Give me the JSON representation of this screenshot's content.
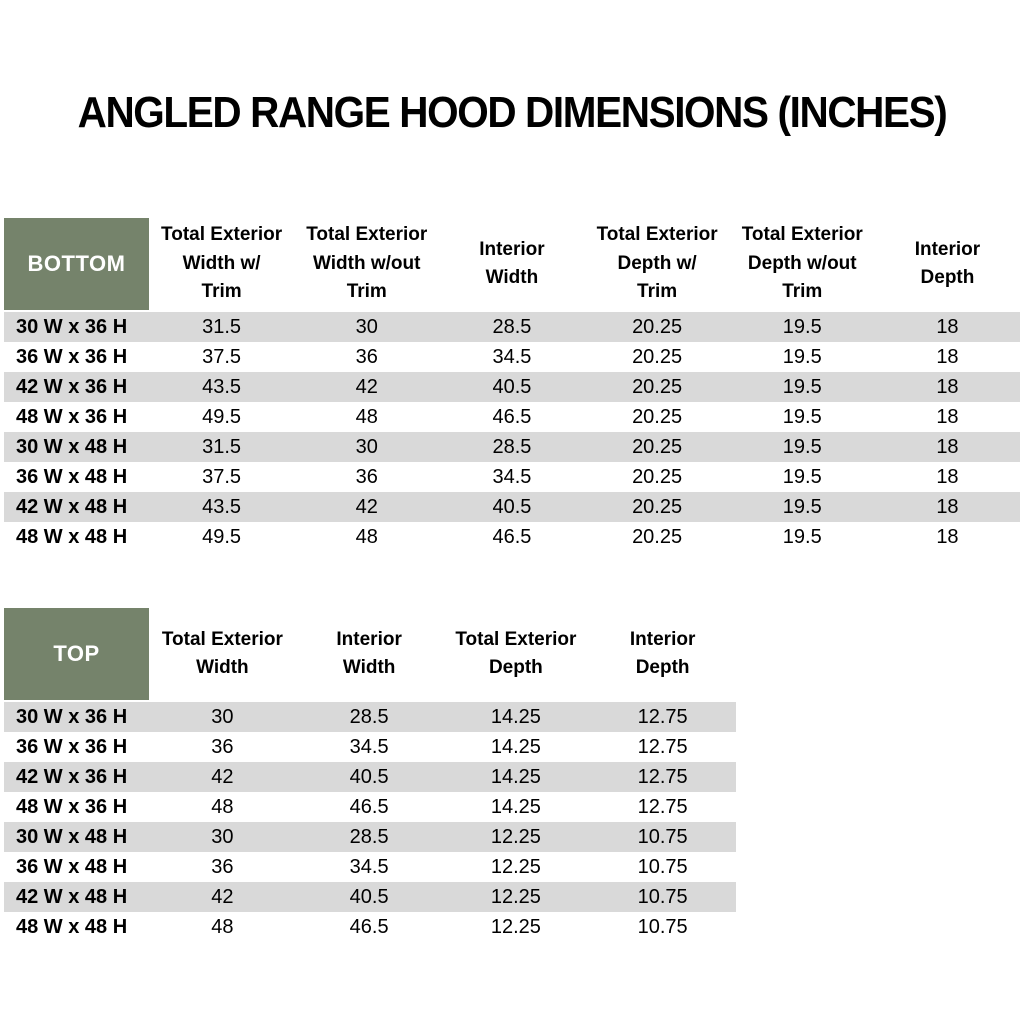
{
  "title": "ANGLED RANGE HOOD DIMENSIONS (INCHES)",
  "colors": {
    "header_green": "#75836B",
    "stripe_gray": "#D9D9D9",
    "header_label_text": "#FFFFFF",
    "body_text": "#000000"
  },
  "bottom_table": {
    "label": "BOTTOM",
    "columns": [
      "Total Exterior\nWidth w/\nTrim",
      "Total Exterior\nWidth w/out\nTrim",
      "Interior\nWidth",
      "Total Exterior\nDepth w/\nTrim",
      "Total Exterior\nDepth w/out\nTrim",
      "Interior\nDepth"
    ],
    "rows": [
      {
        "size": "30 W x 36 H",
        "values": [
          "31.5",
          "30",
          "28.5",
          "20.25",
          "19.5",
          "18"
        ]
      },
      {
        "size": "36 W x 36 H",
        "values": [
          "37.5",
          "36",
          "34.5",
          "20.25",
          "19.5",
          "18"
        ]
      },
      {
        "size": "42 W x 36 H",
        "values": [
          "43.5",
          "42",
          "40.5",
          "20.25",
          "19.5",
          "18"
        ]
      },
      {
        "size": "48 W x 36 H",
        "values": [
          "49.5",
          "48",
          "46.5",
          "20.25",
          "19.5",
          "18"
        ]
      },
      {
        "size": "30 W x 48 H",
        "values": [
          "31.5",
          "30",
          "28.5",
          "20.25",
          "19.5",
          "18"
        ]
      },
      {
        "size": "36 W x 48 H",
        "values": [
          "37.5",
          "36",
          "34.5",
          "20.25",
          "19.5",
          "18"
        ]
      },
      {
        "size": "42 W x 48 H",
        "values": [
          "43.5",
          "42",
          "40.5",
          "20.25",
          "19.5",
          "18"
        ]
      },
      {
        "size": "48 W x 48 H",
        "values": [
          "49.5",
          "48",
          "46.5",
          "20.25",
          "19.5",
          "18"
        ]
      }
    ]
  },
  "top_table": {
    "label": "TOP",
    "columns": [
      "Total Exterior\nWidth",
      "Interior\nWidth",
      "Total Exterior\nDepth",
      "Interior\nDepth"
    ],
    "rows": [
      {
        "size": "30 W x 36 H",
        "values": [
          "30",
          "28.5",
          "14.25",
          "12.75"
        ]
      },
      {
        "size": "36 W x 36 H",
        "values": [
          "36",
          "34.5",
          "14.25",
          "12.75"
        ]
      },
      {
        "size": "42 W x 36 H",
        "values": [
          "42",
          "40.5",
          "14.25",
          "12.75"
        ]
      },
      {
        "size": "48 W x 36 H",
        "values": [
          "48",
          "46.5",
          "14.25",
          "12.75"
        ]
      },
      {
        "size": "30 W x 48 H",
        "values": [
          "30",
          "28.5",
          "12.25",
          "10.75"
        ]
      },
      {
        "size": "36 W x 48 H",
        "values": [
          "36",
          "34.5",
          "12.25",
          "10.75"
        ]
      },
      {
        "size": "42 W x 48 H",
        "values": [
          "42",
          "40.5",
          "12.25",
          "10.75"
        ]
      },
      {
        "size": "48 W x 48 H",
        "values": [
          "48",
          "46.5",
          "12.25",
          "10.75"
        ]
      }
    ]
  }
}
